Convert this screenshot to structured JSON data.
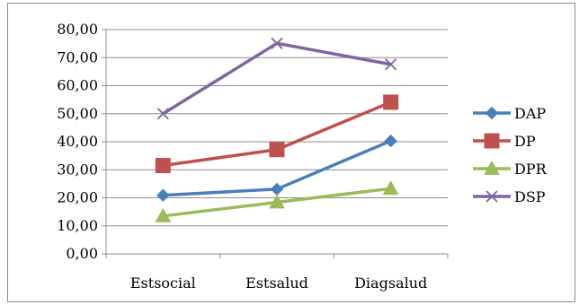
{
  "chart_data": {
    "type": "line",
    "categories": [
      "Estsocial",
      "Estsalud",
      "Diagsalud"
    ],
    "ylim": [
      0,
      80
    ],
    "ytick_step": 10,
    "ytick_labels": [
      "0,00",
      "10,00",
      "20,00",
      "30,00",
      "40,00",
      "50,00",
      "60,00",
      "70,00",
      "80,00"
    ],
    "grid": true,
    "legend_position": "right",
    "series": [
      {
        "name": "DAP",
        "values": [
          20.9,
          23.1,
          40.3
        ],
        "color": "#4A7EBB",
        "marker": "diamond"
      },
      {
        "name": "DP",
        "values": [
          31.5,
          37.2,
          54.1
        ],
        "color": "#C0504D",
        "marker": "square"
      },
      {
        "name": "DPR",
        "values": [
          13.5,
          18.4,
          23.3
        ],
        "color": "#9BBB59",
        "marker": "triangle"
      },
      {
        "name": "DSP",
        "values": [
          50.0,
          75.1,
          67.6
        ],
        "color": "#8064A2",
        "marker": "x"
      }
    ]
  }
}
